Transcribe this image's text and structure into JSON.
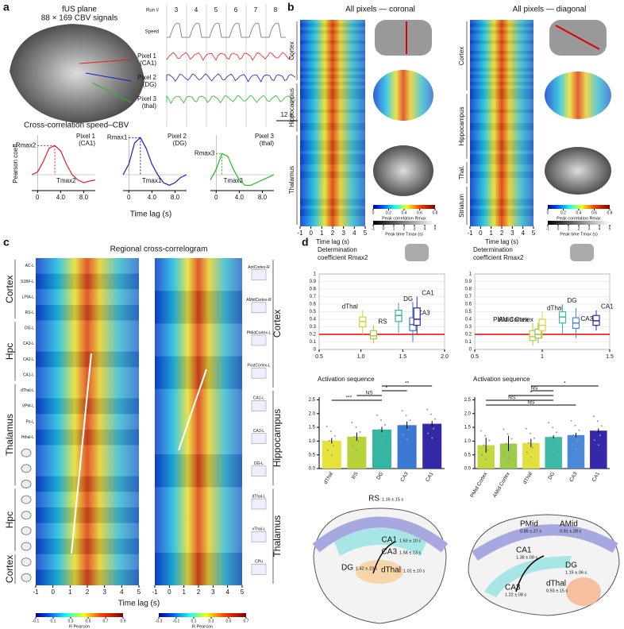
{
  "figure_labels": [
    "a",
    "b",
    "c",
    "d"
  ],
  "panel_a": {
    "image_title": [
      "fUS plane",
      "88 × 169 CBV signals"
    ],
    "run_label": "Run #",
    "runs": [
      "3",
      "4",
      "5",
      "6",
      "7",
      "8"
    ],
    "speed_label": "Speed",
    "pixels": [
      {
        "name": "Pixel 1",
        "region": "(CA1)",
        "color": "#e02020"
      },
      {
        "name": "Pixel 2",
        "region": "(DG)",
        "color": "#1a1acc"
      },
      {
        "name": "Pixel 3",
        "region": "(thal)",
        "color": "#22bb22"
      }
    ],
    "scale": "12 s",
    "cc_title": "Cross-correlation speed–CBV",
    "y_label": "Pearson coeff.",
    "x_label": "Time lag (s)"
  },
  "panel_c": {
    "title": "Regional cross-correlogram",
    "x_label": "Time lag (s)"
  },
  "panel_d": {
    "left_diagram": [
      {
        "region": "RS",
        "time": "1.16 ±.15 s"
      },
      {
        "region": "CA1",
        "time": "1.63 ±.10 s"
      },
      {
        "region": "CA3",
        "time": "1.58 ±.13 s"
      },
      {
        "region": "DG",
        "time": "1.42 ±.10 s"
      },
      {
        "region": "dThal",
        "time": "1.01 ±.10 s"
      }
    ],
    "right_diagram": [
      {
        "region": "PMid",
        "time": "0.85 ±.27 s"
      },
      {
        "region": "AMid",
        "time": "0.91 ±.28 s"
      },
      {
        "region": "CA1",
        "time": "1.38 ±.08 s"
      },
      {
        "region": "DG",
        "time": "1.15 ±.06 s"
      },
      {
        "region": "CA3",
        "time": "1.22 ±.08 s"
      },
      {
        "region": "dThal",
        "time": "0.93 ±.15 s"
      }
    ]
  },
  "chart_data": [
    {
      "type": "line",
      "name": "Pixel 1",
      "region": "(CA1)",
      "color": "#e02020",
      "x": [
        -1,
        0,
        1,
        2,
        3,
        4,
        5,
        6,
        7,
        8,
        9,
        10
      ],
      "values": [
        0.0,
        0.05,
        0.25,
        0.5,
        0.55,
        0.45,
        0.2,
        0.0,
        -0.1,
        -0.15,
        -0.12,
        -0.1
      ],
      "xlim": [
        -1,
        10
      ],
      "ylim": [
        -0.3,
        0.75
      ],
      "xticks": [
        0,
        {
          "value": 4,
          "label": "4.0"
        },
        {
          "value": 8,
          "label": "8.0"
        }
      ],
      "annotations": [
        "Rmax2",
        "Tmax2"
      ]
    },
    {
      "type": "line",
      "name": "Pixel 2",
      "region": "(DG)",
      "color": "#1a1acc",
      "x": [
        -1,
        0,
        1,
        2,
        3,
        4,
        5,
        6,
        7,
        8,
        9,
        10
      ],
      "values": [
        0.0,
        0.2,
        0.6,
        0.7,
        0.5,
        0.2,
        0.0,
        -0.15,
        -0.2,
        -0.15,
        -0.05,
        0.0
      ],
      "xlim": [
        -1,
        10
      ],
      "ylim": [
        -0.3,
        0.75
      ],
      "xticks": [
        0,
        {
          "value": 4,
          "label": "4.0"
        },
        {
          "value": 8,
          "label": "8.0"
        }
      ],
      "annotations": [
        "Rmax1",
        "Tmax1"
      ]
    },
    {
      "type": "line",
      "name": "Pixel 3",
      "region": "(thal)",
      "color": "#22bb22",
      "x": [
        -1,
        0,
        1,
        2,
        3,
        4,
        5,
        6,
        7,
        8,
        9,
        10
      ],
      "values": [
        -0.1,
        0.1,
        0.4,
        0.35,
        0.1,
        -0.1,
        -0.2,
        -0.2,
        -0.15,
        -0.1,
        -0.05,
        0.0
      ],
      "xlim": [
        -1,
        10
      ],
      "ylim": [
        -0.3,
        0.75
      ],
      "xticks": [
        0,
        {
          "value": 4,
          "label": "4.0"
        },
        {
          "value": 8,
          "label": "8.0"
        }
      ],
      "annotations": [
        "Rmax3",
        "Tmax3"
      ]
    },
    {
      "type": "heatmap",
      "title": "All pixels — coronal",
      "x_label": "Time lag (s)",
      "xlim": [
        -1,
        5
      ],
      "xticks": [
        -1,
        0,
        1,
        2,
        3,
        4,
        5
      ],
      "groups": [
        "Cortex",
        "Hippocampus",
        "Thalamus"
      ],
      "colorbars": [
        {
          "label": "Peak correlation Rmax",
          "ticks": [
            0,
            0.2,
            0.4,
            0.6,
            0.8
          ]
        },
        {
          "label": "Peak time Tmax (s)",
          "ticks": [
            -1,
            0,
            1,
            2,
            3,
            4,
            5
          ]
        }
      ]
    },
    {
      "type": "heatmap",
      "title": "All pixels — diagonal",
      "x_label": "Time lag (s)",
      "xlim": [
        -1,
        5
      ],
      "xticks": [
        -1,
        0,
        1,
        2,
        3,
        4,
        5
      ],
      "groups": [
        "Cortex",
        "Hippocampus",
        "Thal.",
        "Striatum"
      ],
      "colorbars": [
        {
          "label": "Peak correlation Rmax",
          "ticks": [
            0,
            0.2,
            0.4,
            0.6,
            0.8
          ]
        },
        {
          "label": "Peak time Tmax (s)",
          "ticks": [
            -1,
            0,
            1,
            2,
            3,
            4,
            5
          ]
        }
      ]
    },
    {
      "type": "heatmap",
      "xlim": [
        -1,
        5
      ],
      "xticks": [
        -1,
        0,
        1,
        2,
        3,
        4,
        5
      ],
      "rows": [
        "AC-L",
        "S1BF-L",
        "LPtA-L",
        "RS-L",
        "DG-L",
        "CA3-L",
        "CA2-L",
        "CA1-L",
        "dThal-L",
        "VPM-L",
        "Po-L",
        "Hthal-L",
        null,
        null,
        null,
        null,
        null,
        null,
        null,
        null,
        null
      ],
      "groups": [
        "Cortex",
        "Hpc",
        "Thalamus",
        "Hpc",
        "Cortex"
      ],
      "colorbars": [
        {
          "label": "R Pearson",
          "ticks": [
            -0.1,
            0.1,
            0.3,
            0.5,
            0.7,
            0.9
          ]
        }
      ]
    },
    {
      "type": "heatmap",
      "xlim": [
        -1,
        5
      ],
      "xticks": [
        -1,
        0,
        1,
        2,
        3,
        4,
        5
      ],
      "rows": [
        "AntCortex-R",
        "AMidCortex-R",
        "PMidCortex-L",
        "PostCortex-L",
        "CA1-L",
        "CA3-L",
        "DG-L",
        "dThal-L",
        "vThal-L",
        "CPu"
      ],
      "groups": [
        "Cortex",
        "Hippocampus",
        "Thalamus"
      ],
      "colorbars": [
        {
          "label": "R Pearson",
          "ticks": [
            -0.3,
            -0.1,
            0.1,
            0.3,
            0.5,
            0.7
          ]
        }
      ]
    },
    {
      "type": "box",
      "title": [
        "Determination",
        "coefficient Rmax2"
      ],
      "categories": [
        "dThal",
        "RS",
        "DG",
        "CA3",
        "CA1"
      ],
      "colors": [
        "#d8cf2a",
        "#a8c83a",
        "#2fb3a0",
        "#3a76cf",
        "#3326a3"
      ],
      "x": [
        1.02,
        1.15,
        1.45,
        1.62,
        1.67
      ],
      "whislo": [
        0.2,
        0.08,
        0.22,
        0.1,
        0.2
      ],
      "q1": [
        0.3,
        0.14,
        0.37,
        0.25,
        0.32
      ],
      "med": [
        0.37,
        0.18,
        0.45,
        0.33,
        0.4
      ],
      "q3": [
        0.43,
        0.25,
        0.52,
        0.42,
        0.55
      ],
      "whishi": [
        0.52,
        0.32,
        0.62,
        0.63,
        0.7
      ],
      "threshold": 0.2,
      "xlim": [
        0.5,
        2.0
      ],
      "ylim": [
        0,
        1
      ],
      "xticks": [
        0.5,
        {
          "value": 1,
          "label": "1.0"
        },
        1.5,
        {
          "value": 2,
          "label": "2.0"
        }
      ],
      "yticks": [
        0,
        0.1,
        0.2,
        0.3,
        0.4,
        0.5,
        0.6,
        0.7,
        0.8,
        0.9,
        1
      ]
    },
    {
      "type": "box",
      "title": [
        "Determination",
        "coefficient Rmax2"
      ],
      "categories": [
        "PMid Cortex",
        "AMid Cortex",
        "dThal",
        "DG",
        "CA3",
        "CA1"
      ],
      "colors": [
        "#b5cf3a",
        "#95c24a",
        "#d8d43a",
        "#3db9a6",
        "#4a86d8",
        "#3526a8"
      ],
      "x": [
        0.93,
        0.97,
        1.0,
        1.15,
        1.25,
        1.4
      ],
      "whislo": [
        0.05,
        0.08,
        0.15,
        0.2,
        0.15,
        0.25
      ],
      "q1": [
        0.12,
        0.15,
        0.25,
        0.35,
        0.28,
        0.32
      ],
      "med": [
        0.17,
        0.2,
        0.32,
        0.43,
        0.35,
        0.38
      ],
      "q3": [
        0.25,
        0.27,
        0.4,
        0.5,
        0.42,
        0.45
      ],
      "whishi": [
        0.35,
        0.35,
        0.5,
        0.6,
        0.55,
        0.52
      ],
      "threshold": 0.2,
      "xlim": [
        0.5,
        1.5
      ],
      "ylim": [
        0,
        1
      ],
      "xticks": [
        0.5,
        1,
        1.5
      ],
      "yticks": [
        0,
        0.1,
        0.2,
        0.3,
        0.4,
        0.5,
        0.6,
        0.7,
        0.8,
        0.9,
        1
      ]
    },
    {
      "type": "bar",
      "title": "Activation sequence",
      "categories": [
        "dThal",
        "RS",
        "DG",
        "CA3",
        "CA1"
      ],
      "colors": [
        "#e6e23a",
        "#b6d43a",
        "#35b6a3",
        "#3a78d2",
        "#3428a6"
      ],
      "values": [
        1.01,
        1.16,
        1.42,
        1.58,
        1.63
      ],
      "errors": [
        0.1,
        0.15,
        0.1,
        0.13,
        0.1
      ],
      "ylim": [
        0,
        2.6
      ],
      "yticks": [
        {
          "value": 0,
          "label": "0.0"
        },
        0.5,
        {
          "value": 1,
          "label": "1.0"
        },
        1.5,
        {
          "value": 2,
          "label": "2.0"
        },
        2.5
      ],
      "significance": [
        "**",
        "*",
        "NS",
        "***"
      ]
    },
    {
      "type": "bar",
      "title": "Activation sequence",
      "categories": [
        "PMid Cortex",
        "AMid Cortex",
        "dThal",
        "DG",
        "CA3",
        "CA1"
      ],
      "colors": [
        "#c4d83c",
        "#a0cb48",
        "#e2e03e",
        "#3fbaa7",
        "#4b88da",
        "#3628aa"
      ],
      "values": [
        0.85,
        0.91,
        0.93,
        1.15,
        1.22,
        1.38
      ],
      "errors": [
        0.27,
        0.28,
        0.15,
        0.06,
        0.08,
        0.08
      ],
      "ylim": [
        0,
        2.6
      ],
      "yticks": [
        {
          "value": 0,
          "label": "0.0"
        },
        0.5,
        {
          "value": 1,
          "label": "1.0"
        },
        1.5,
        {
          "value": 2,
          "label": "2.0"
        },
        2.5
      ],
      "significance": [
        "*",
        "NS",
        "*",
        "NS",
        "NS"
      ]
    }
  ]
}
